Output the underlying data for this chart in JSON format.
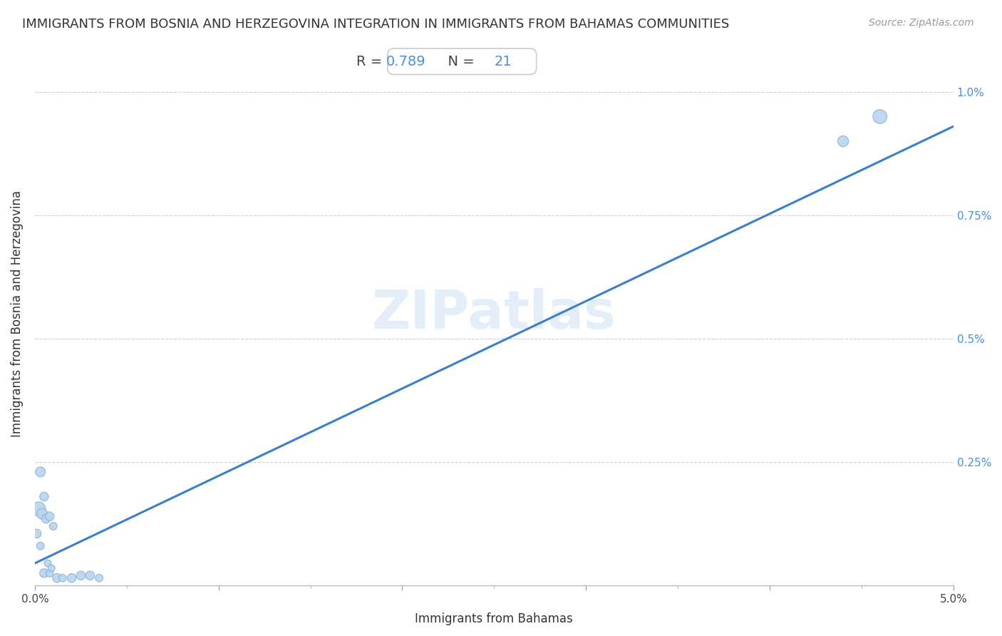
{
  "title": "IMMIGRANTS FROM BOSNIA AND HERZEGOVINA INTEGRATION IN IMMIGRANTS FROM BAHAMAS COMMUNITIES",
  "source": "Source: ZipAtlas.com",
  "xlabel": "Immigrants from Bahamas",
  "ylabel": "Immigrants from Bosnia and Herzegovina",
  "R": 0.789,
  "N": 21,
  "watermark": "ZIPatlas",
  "xlim": [
    0.0,
    0.05
  ],
  "ylim": [
    0.0,
    0.011
  ],
  "xticks": [
    0.0,
    0.01,
    0.02,
    0.03,
    0.04,
    0.05
  ],
  "xtick_labels": [
    "0.0%",
    "",
    "",
    "",
    "",
    "5.0%"
  ],
  "ytick_positions": [
    0.0025,
    0.005,
    0.0075,
    0.01
  ],
  "ytick_labels": [
    "0.25%",
    "0.5%",
    "0.75%",
    "1.0%"
  ],
  "scatter_x": [
    0.0002,
    0.0004,
    0.0001,
    0.0006,
    0.0003,
    0.0007,
    0.0005,
    0.0008,
    0.0009,
    0.0003,
    0.0005,
    0.0008,
    0.001,
    0.0012,
    0.0015,
    0.002,
    0.0025,
    0.003,
    0.0035,
    0.044,
    0.046
  ],
  "scatter_y": [
    0.00155,
    0.00145,
    0.00105,
    0.00135,
    0.0008,
    0.00045,
    0.00025,
    0.00025,
    0.00035,
    0.0023,
    0.0018,
    0.0014,
    0.0012,
    0.00015,
    0.00015,
    0.00015,
    0.0002,
    0.0002,
    0.00015,
    0.009,
    0.0095
  ],
  "scatter_sizes": [
    200,
    120,
    80,
    80,
    60,
    50,
    80,
    60,
    50,
    100,
    80,
    80,
    60,
    80,
    60,
    80,
    80,
    80,
    60,
    120,
    200
  ],
  "scatter_color": "#b8d4ee",
  "scatter_edge_color": "#88b4d8",
  "regression_color": "#3a80c9",
  "regression_x0": 0.0,
  "regression_y0": 0.00045,
  "regression_x1": 0.05,
  "regression_y1": 0.0093,
  "regression_linewidth": 2.2,
  "title_fontsize": 13,
  "axis_label_fontsize": 12,
  "tick_label_fontsize": 11,
  "annotation_fontsize": 14,
  "source_fontsize": 10,
  "background_color": "#ffffff",
  "grid_color": "#bbbbbb",
  "grid_linestyle": "--",
  "grid_alpha": 0.7
}
